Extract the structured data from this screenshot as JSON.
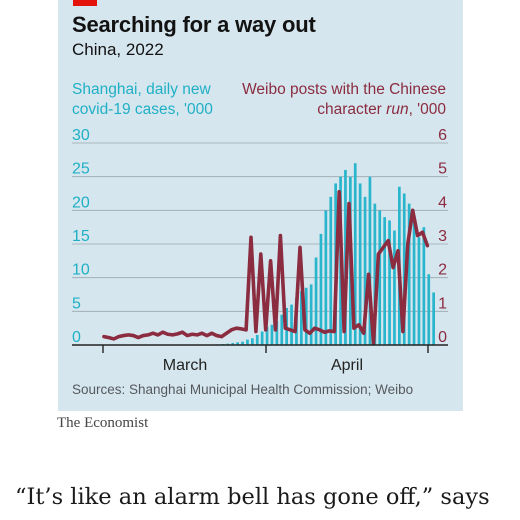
{
  "header": {
    "title": "Searching for a way out",
    "subtitle": "China, 2022"
  },
  "legend": {
    "left_line1": "Shanghai, daily new",
    "left_line2": "covid-19 cases, '000",
    "right_line1": "Weibo posts with the Chinese",
    "right_line2_pre": "character ",
    "right_line2_em": "run",
    "right_line2_post": ", '000"
  },
  "colors": {
    "bars": "#29b6cc",
    "line": "#8b2c40",
    "panel": "#d6e6ee",
    "accent_tag": "#e3120b"
  },
  "chart_data": {
    "type": "bar",
    "x_axis": {
      "ticks": [
        "March",
        "April"
      ]
    },
    "y_left": {
      "label": "Shanghai, daily new covid-19 cases, '000",
      "ylim": [
        0,
        30
      ],
      "ticks": [
        0,
        5,
        10,
        15,
        20,
        25,
        30
      ]
    },
    "y_right": {
      "label": "Weibo posts with the Chinese character run, '000",
      "ylim": [
        0,
        6
      ],
      "ticks": [
        0,
        1,
        2,
        3,
        4,
        5,
        6
      ]
    },
    "grid": true,
    "series": [
      {
        "name": "Shanghai, daily new covid-19 cases, '000",
        "type": "bar",
        "axis": "left",
        "values": [
          0,
          0,
          0,
          0,
          0,
          0,
          0,
          0,
          0,
          0,
          0,
          0,
          0,
          0,
          0,
          0,
          0,
          0,
          0,
          0,
          0,
          0.02,
          0.05,
          0.1,
          0.15,
          0.2,
          0.3,
          0.4,
          0.5,
          0.8,
          1.0,
          1.5,
          2.0,
          2.7,
          3.0,
          3.5,
          4.5,
          5.5,
          6.0,
          7.0,
          8.0,
          8.5,
          9.0,
          13.0,
          16.5,
          20.0,
          22.0,
          24.0,
          25.0,
          26.0,
          25.0,
          27.0,
          24.0,
          22.0,
          25.0,
          21.0,
          20.0,
          19.0,
          18.5,
          17.0,
          23.5,
          22.5,
          21.0,
          18.5,
          16.0,
          17.5,
          10.5,
          7.8
        ]
      },
      {
        "name": "Weibo posts with the Chinese character run, '000",
        "type": "line",
        "axis": "right",
        "values": [
          0.25,
          0.22,
          0.18,
          0.25,
          0.28,
          0.3,
          0.28,
          0.22,
          0.28,
          0.3,
          0.35,
          0.3,
          0.38,
          0.32,
          0.3,
          0.33,
          0.38,
          0.28,
          0.32,
          0.3,
          0.35,
          0.28,
          0.35,
          0.28,
          0.25,
          0.35,
          0.45,
          0.5,
          0.48,
          0.45,
          3.2,
          0.4,
          2.7,
          0.45,
          2.5,
          0.45,
          3.25,
          0.5,
          0.45,
          0.4,
          2.9,
          0.45,
          0.35,
          0.5,
          0.45,
          0.38,
          0.42,
          0.4,
          4.55,
          0.4,
          4.2,
          0.5,
          0.6,
          0.35,
          2.1,
          0.05,
          2.7,
          2.9,
          3.1,
          2.3,
          2.8,
          0.4,
          3.0,
          4.0,
          3.25,
          3.35,
          2.95
        ]
      }
    ]
  },
  "source": "Sources: Shanghai Municipal Health Commission; Weibo",
  "brand": "The Economist",
  "body_text": "“It’s like an alarm bell has gone off,” says"
}
